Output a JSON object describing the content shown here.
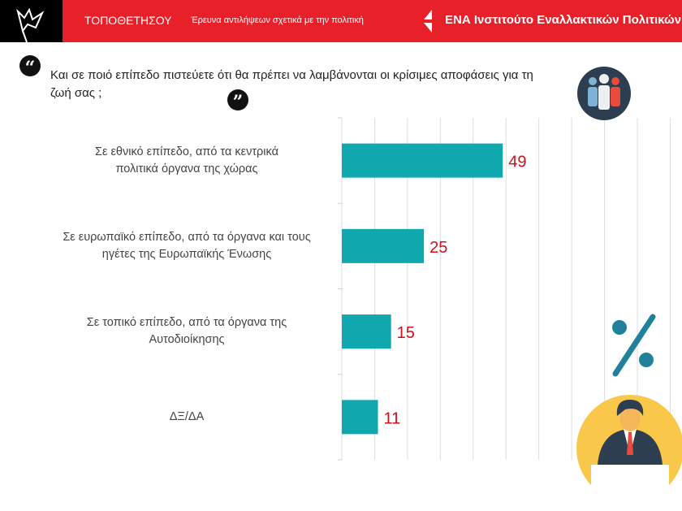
{
  "header": {
    "brand": "ΤΟΠΟΘΕΤΗΣΟΥ",
    "subtitle": "Έρευνα αντιλήψεων σχετικά με την πολιτική",
    "institute": "ΕΝΑ Ινστιτούτο Εναλλακτικών Πολιτικών"
  },
  "colors": {
    "header": "#e8202a",
    "bar": "#0ea8ae",
    "label": "#d0101a"
  },
  "chart_data": {
    "type": "bar",
    "orientation": "horizontal",
    "title": "Και σε ποιό επίπεδο πιστεύετε ότι θα πρέπει να λαμβάνονται οι κρίσιμες αποφάσεις για τη ζωή σας ;",
    "categories": [
      [
        "Σε εθνικό επίπεδο, από τα κεντρικά",
        "πολιτικά όργανα της χώρας"
      ],
      [
        "Σε ευρωπαϊκό επίπεδο, από τα όργανα και τους",
        "ηγέτες της Ευρωπαϊκής Ένωσης"
      ],
      [
        "Σε τοπικό επίπεδο, από τα όργανα της",
        "Αυτοδιοίκησης"
      ],
      [
        "ΔΞ/ΔΑ"
      ]
    ],
    "values": [
      49,
      25,
      15,
      11
    ],
    "xlim": [
      0,
      100
    ],
    "grid": true,
    "unit": "%"
  }
}
